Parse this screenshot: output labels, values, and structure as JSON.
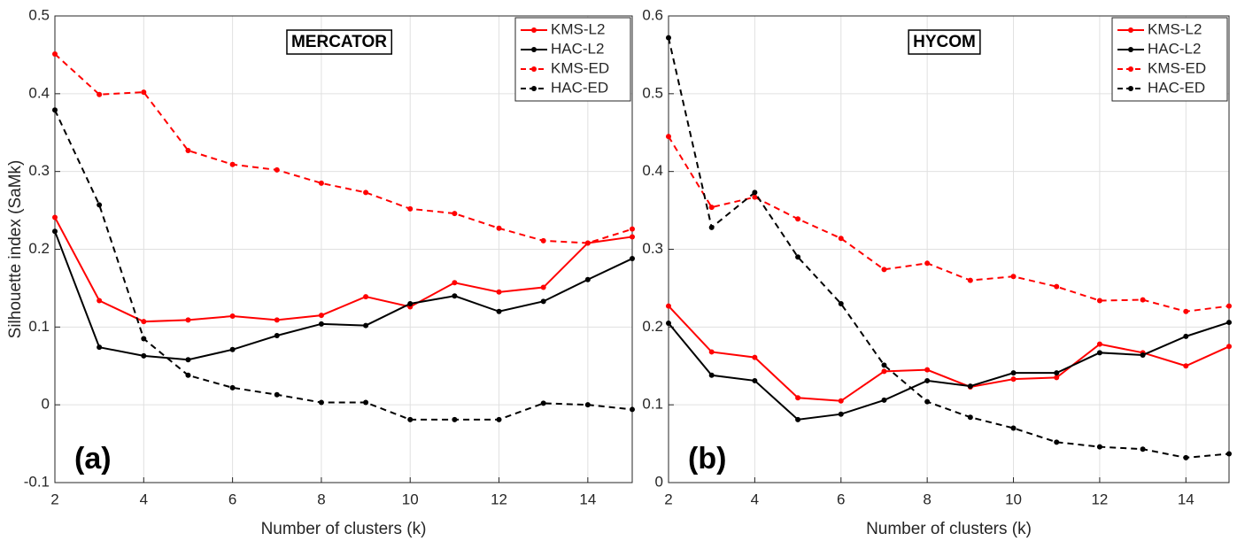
{
  "chart_data": [
    {
      "type": "line",
      "title": "MERCATOR",
      "annotation": "(a)",
      "y_label": "Silhouette index (SaMk)",
      "x_label": "Number of clusters (k)",
      "x": [
        2,
        3,
        4,
        5,
        6,
        7,
        8,
        9,
        10,
        11,
        12,
        13,
        14,
        15
      ],
      "xlim": [
        2,
        15
      ],
      "xticks": [
        2,
        4,
        6,
        8,
        10,
        12,
        14
      ],
      "ylim": [
        -0.1,
        0.5
      ],
      "yticks": [
        -0.1,
        0,
        0.1,
        0.2,
        0.3,
        0.4,
        0.5
      ],
      "grid": true,
      "legend": "upper right",
      "series": [
        {
          "name": "KMS-L2",
          "color": "#ff0000",
          "linestyle": "solid",
          "values": [
            0.241,
            0.134,
            0.107,
            0.109,
            0.114,
            0.109,
            0.115,
            0.139,
            0.126,
            0.157,
            0.145,
            0.151,
            0.208,
            0.216
          ]
        },
        {
          "name": "HAC-L2",
          "color": "#000000",
          "linestyle": "solid",
          "values": [
            0.223,
            0.074,
            0.063,
            0.058,
            0.071,
            0.089,
            0.104,
            0.102,
            0.13,
            0.14,
            0.12,
            0.133,
            0.161,
            0.188
          ]
        },
        {
          "name": "KMS-ED",
          "color": "#ff0000",
          "linestyle": "dashed",
          "values": [
            0.451,
            0.399,
            0.402,
            0.327,
            0.309,
            0.302,
            0.285,
            0.273,
            0.252,
            0.246,
            0.227,
            0.211,
            0.208,
            0.226
          ]
        },
        {
          "name": "HAC-ED",
          "color": "#000000",
          "linestyle": "dashed",
          "values": [
            0.379,
            0.257,
            0.085,
            0.038,
            0.022,
            0.013,
            0.003,
            0.003,
            -0.019,
            -0.019,
            -0.019,
            0.002,
            0,
            -0.006
          ]
        }
      ]
    },
    {
      "type": "line",
      "title": "HYCOM",
      "annotation": "(b)",
      "x_label": "Number of clusters (k)",
      "x": [
        2,
        3,
        4,
        5,
        6,
        7,
        8,
        9,
        10,
        11,
        12,
        13,
        14,
        15
      ],
      "xlim": [
        2,
        15
      ],
      "xticks": [
        2,
        4,
        6,
        8,
        10,
        12,
        14
      ],
      "ylim": [
        0,
        0.6
      ],
      "yticks": [
        0,
        0.1,
        0.2,
        0.3,
        0.4,
        0.5,
        0.6
      ],
      "grid": true,
      "legend": "upper right",
      "series": [
        {
          "name": "KMS-L2",
          "color": "#ff0000",
          "linestyle": "solid",
          "values": [
            0.227,
            0.168,
            0.161,
            0.109,
            0.105,
            0.143,
            0.145,
            0.123,
            0.133,
            0.135,
            0.178,
            0.167,
            0.15,
            0.175
          ]
        },
        {
          "name": "HAC-L2",
          "color": "#000000",
          "linestyle": "solid",
          "values": [
            0.205,
            0.138,
            0.131,
            0.081,
            0.088,
            0.106,
            0.131,
            0.124,
            0.141,
            0.141,
            0.167,
            0.164,
            0.188,
            0.206
          ]
        },
        {
          "name": "KMS-ED",
          "color": "#ff0000",
          "linestyle": "dashed",
          "values": [
            0.445,
            0.354,
            0.367,
            0.339,
            0.314,
            0.274,
            0.282,
            0.26,
            0.265,
            0.252,
            0.234,
            0.235,
            0.22,
            0.227
          ]
        },
        {
          "name": "HAC-ED",
          "color": "#000000",
          "linestyle": "dashed",
          "values": [
            0.572,
            0.328,
            0.373,
            0.29,
            0.23,
            0.151,
            0.104,
            0.084,
            0.07,
            0.052,
            0.046,
            0.043,
            0.032,
            0.037
          ]
        }
      ]
    }
  ]
}
